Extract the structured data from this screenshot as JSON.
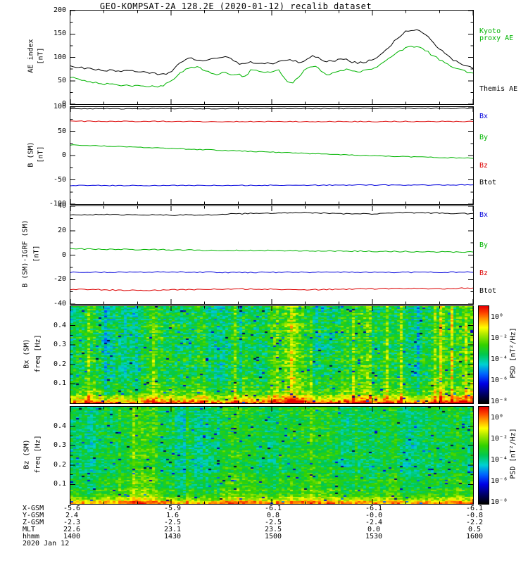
{
  "title": "GEO-KOMPSAT-2A 128.2E (2020-01-12) recalib dataset",
  "time_axis": {
    "major_minutes": [
      0,
      30,
      60,
      90,
      120
    ],
    "minor_step_minutes": 10,
    "labels": [
      "1400",
      "1430",
      "1500",
      "1530",
      "1600"
    ]
  },
  "colormap": [
    {
      "t": 0.0,
      "c": "#000000"
    },
    {
      "t": 0.1,
      "c": "#00006e"
    },
    {
      "t": 0.2,
      "c": "#0000e6"
    },
    {
      "t": 0.3,
      "c": "#0064ff"
    },
    {
      "t": 0.4,
      "c": "#00d2d2"
    },
    {
      "t": 0.5,
      "c": "#00c850"
    },
    {
      "t": 0.6,
      "c": "#32d200"
    },
    {
      "t": 0.7,
      "c": "#a0e600"
    },
    {
      "t": 0.78,
      "c": "#ffff00"
    },
    {
      "t": 0.86,
      "c": "#ffa000"
    },
    {
      "t": 0.93,
      "c": "#ff4600"
    },
    {
      "t": 1.0,
      "c": "#e60000"
    }
  ],
  "colorbar": {
    "label": "PSD [nT²/Hz]",
    "ticks": [
      "10⁰",
      "10⁻²",
      "10⁻⁴",
      "10⁻⁶",
      "10⁻⁸"
    ]
  },
  "ae_legend": [
    {
      "lines": [
        "Kyoto",
        "proxy AE"
      ],
      "color": "#00b400"
    },
    {
      "lines": [
        "Themis AE"
      ],
      "color": "#000000"
    }
  ],
  "bottom_axis": {
    "rows": [
      {
        "label": "X-GSM",
        "values": [
          "-5.6",
          "-5.9",
          "-6.1",
          "-6.1",
          "-6.1"
        ]
      },
      {
        "label": "Y-GSM",
        "values": [
          "2.4",
          "1.6",
          "0.8",
          "-0.0",
          "-0.8"
        ]
      },
      {
        "label": "Z-GSM",
        "values": [
          "-2.3",
          "-2.5",
          "-2.5",
          "-2.4",
          "-2.2"
        ]
      },
      {
        "label": "MLT",
        "values": [
          "22.6",
          "23.1",
          "23.5",
          "0.0",
          "0.5"
        ]
      },
      {
        "label": "hhmm",
        "values": [
          "1400",
          "1430",
          "1500",
          "1530",
          "1600"
        ]
      },
      {
        "label": "2020 Jan 12",
        "values": []
      }
    ]
  },
  "chart_data": [
    {
      "id": "ae_index",
      "type": "line",
      "ylabel": "AE index",
      "ylabel2": "[nT]",
      "ylim": [
        0,
        200
      ],
      "yticks": [
        0,
        50,
        100,
        150,
        200
      ],
      "x_minutes_range": [
        0,
        120
      ],
      "series": [
        {
          "name": "Kyoto proxy AE",
          "color": "#00b400",
          "values": [
            57,
            55,
            50,
            48,
            45,
            42,
            44,
            40,
            42,
            38,
            41,
            39,
            38,
            36,
            40,
            50,
            62,
            72,
            78,
            82,
            72,
            68,
            64,
            70,
            60,
            64,
            58,
            74,
            71,
            67,
            70,
            74,
            52,
            44,
            58,
            74,
            82,
            78,
            62,
            66,
            70,
            75,
            72,
            68,
            72,
            76,
            82,
            92,
            103,
            112,
            120,
            124,
            122,
            114,
            104,
            95,
            88,
            80,
            74,
            69,
            65
          ]
        },
        {
          "name": "Themis AE",
          "color": "#000000",
          "values": [
            80,
            78,
            77,
            75,
            74,
            72,
            73,
            71,
            70,
            72,
            71,
            69,
            66,
            64,
            63,
            70,
            84,
            95,
            98,
            93,
            95,
            97,
            100,
            103,
            98,
            86,
            88,
            90,
            86,
            88,
            85,
            90,
            95,
            93,
            90,
            92,
            105,
            99,
            91,
            92,
            95,
            97,
            90,
            88,
            90,
            96,
            104,
            115,
            130,
            145,
            155,
            160,
            158,
            148,
            133,
            118,
            106,
            95,
            88,
            82,
            76
          ]
        }
      ]
    },
    {
      "id": "b_sm",
      "type": "line",
      "ylabel": "B (SM)",
      "ylabel2": "[nT]",
      "ylim": [
        -100,
        100
      ],
      "yticks": [
        -100,
        -50,
        0,
        50,
        100
      ],
      "x_minutes_range": [
        0,
        120
      ],
      "series": [
        {
          "name": "Btot",
          "color": "#000000",
          "values": [
            96.4,
            96.5,
            96.5,
            96.6,
            96.6,
            96.7,
            96.8,
            96.8,
            96.9,
            97.0,
            97.1,
            97.3,
            97.4
          ]
        },
        {
          "name": "Bz",
          "color": "#dc0000",
          "values": [
            70.6,
            70.5,
            70.4,
            70.2,
            70.1,
            70.0,
            69.9,
            69.9,
            70.0,
            70.1,
            70.2,
            70.3,
            70.2
          ]
        },
        {
          "name": "By",
          "color": "#00b400",
          "values": [
            22.0,
            19.5,
            17.0,
            14.5,
            12.0,
            9.5,
            7.0,
            4.5,
            2.0,
            -0.3,
            -2.3,
            -4.0,
            -5.5
          ]
        },
        {
          "name": "Bx",
          "color": "#0000dc",
          "values": [
            -61.8,
            -61.7,
            -61.6,
            -61.6,
            -61.5,
            -61.4,
            -61.3,
            -61.2,
            -61.0,
            -60.9,
            -60.8,
            -60.6,
            -60.5
          ]
        }
      ],
      "right_labels": [
        {
          "text": "Bx",
          "color": "#0000dc"
        },
        {
          "text": "By",
          "color": "#00b400"
        },
        {
          "text": "Bz",
          "color": "#dc0000"
        },
        {
          "text": "Btot",
          "color": "#000000"
        }
      ]
    },
    {
      "id": "b_sm_igrf",
      "type": "line",
      "ylabel": "B (SM)-IGRF (SM)",
      "ylabel2": "[nT]",
      "ylim": [
        -40,
        40
      ],
      "yticks": [
        -40,
        -20,
        0,
        20,
        40
      ],
      "x_minutes_range": [
        0,
        120
      ],
      "series": [
        {
          "name": "Btot",
          "color": "#000000",
          "values": [
            32.8,
            33.2,
            33.0,
            32.6,
            33.0,
            33.8,
            34.3,
            34.8,
            34.0,
            33.6,
            34.8,
            34.4,
            33.8
          ]
        },
        {
          "name": "By",
          "color": "#00b400",
          "values": [
            5.0,
            4.8,
            4.6,
            4.3,
            4.1,
            3.9,
            3.7,
            3.5,
            3.3,
            3.1,
            2.9,
            2.7,
            2.5
          ]
        },
        {
          "name": "Bx",
          "color": "#0000dc",
          "values": [
            -14.0,
            -14.1,
            -14.0,
            -13.9,
            -14.0,
            -14.2,
            -14.1,
            -14.0,
            -13.9,
            -14.0,
            -14.1,
            -14.0,
            -13.9
          ]
        },
        {
          "name": "Bz",
          "color": "#dc0000",
          "values": [
            -28.0,
            -28.4,
            -28.8,
            -28.4,
            -28.0,
            -27.6,
            -28.0,
            -28.4,
            -28.0,
            -27.6,
            -27.2,
            -27.5,
            -27.0
          ]
        }
      ],
      "right_labels": [
        {
          "text": "Bx",
          "color": "#0000dc"
        },
        {
          "text": "By",
          "color": "#00b400"
        },
        {
          "text": "Bz",
          "color": "#dc0000"
        },
        {
          "text": "Btot",
          "color": "#000000"
        }
      ]
    },
    {
      "id": "bx_spectrogram",
      "type": "heatmap",
      "ylabel": "Bx (SM)",
      "ylabel2": "freq [Hz]",
      "ylim": [
        0,
        0.5
      ],
      "yticks": [
        0.1,
        0.2,
        0.3,
        0.4
      ],
      "x_minutes_range": [
        0,
        120
      ],
      "value_scale": {
        "unit": "nT²/Hz",
        "log_min": -8,
        "log_max": 1
      },
      "noise_model": {
        "seed": 1337,
        "base": 0.52,
        "col_amp": 0.13,
        "warm_prob": 0.1,
        "cell_amp": 0.11,
        "row_amp": 0.05,
        "low_freq_boost": 0.34,
        "dark_prob": 0.018
      }
    },
    {
      "id": "bz_spectrogram",
      "type": "heatmap",
      "ylabel": "Bz (SM)",
      "ylabel2": "freq [Hz]",
      "ylim": [
        0,
        0.5
      ],
      "yticks": [
        0.1,
        0.2,
        0.3,
        0.4
      ],
      "x_minutes_range": [
        0,
        120
      ],
      "value_scale": {
        "unit": "nT²/Hz",
        "log_min": -8,
        "log_max": 1
      },
      "noise_model": {
        "seed": 7121,
        "base": 0.5,
        "col_amp": 0.08,
        "warm_prob": 0.05,
        "cell_amp": 0.09,
        "row_amp": 0.04,
        "low_freq_boost": 0.26,
        "dark_prob": 0.022
      }
    }
  ]
}
